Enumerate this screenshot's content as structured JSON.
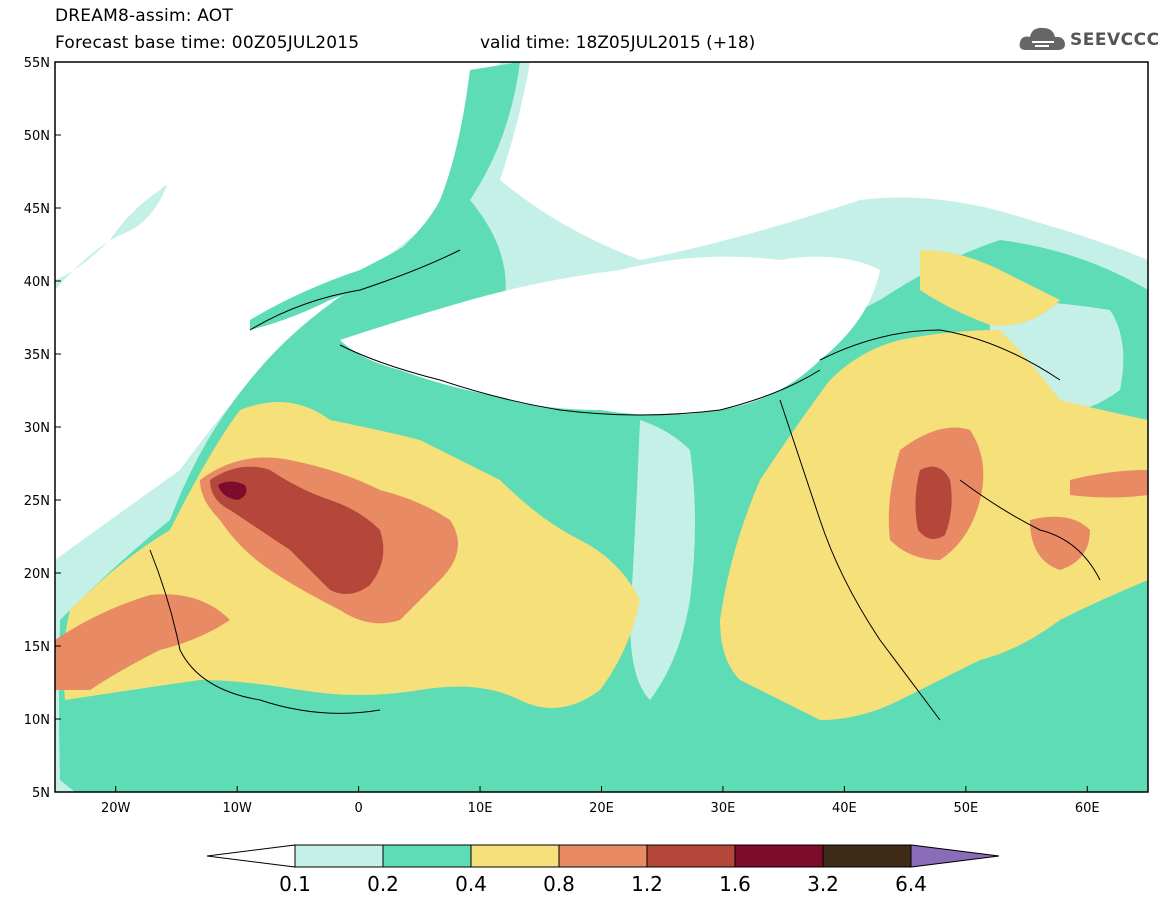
{
  "header": {
    "model_title": "DREAM8-assim: AOT",
    "base_time": "Forecast base time: 00Z05JUL2015",
    "valid_time": "valid time: 18Z05JUL2015 (+18)"
  },
  "logo": {
    "text": "SEEVCCC",
    "icon": "cloud-icon"
  },
  "map": {
    "lon_range": [
      -25,
      65
    ],
    "lat_range": [
      5,
      55
    ],
    "lat_labels": [
      "55N",
      "50N",
      "45N",
      "40N",
      "35N",
      "30N",
      "25N",
      "20N",
      "15N",
      "10N",
      "5N"
    ],
    "lon_labels": [
      "20W",
      "10W",
      "0",
      "10E",
      "20E",
      "30E",
      "40E",
      "50E",
      "60E"
    ]
  },
  "colorbar": {
    "tick_labels": [
      "0.1",
      "0.2",
      "0.4",
      "0.8",
      "1.2",
      "1.6",
      "3.2",
      "6.4"
    ],
    "colors": [
      "#c4f0e8",
      "#5ddcb5",
      "#f5e07a",
      "#e88a64",
      "#b5473a",
      "#7e0a2c",
      "#3f2a18",
      "#8a6cb8"
    ],
    "under_color": "#ffffff"
  }
}
